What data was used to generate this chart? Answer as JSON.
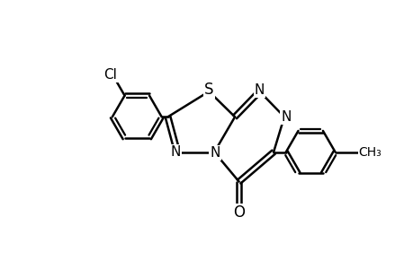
{
  "background_color": "#ffffff",
  "line_color": "#000000",
  "line_width": 1.8,
  "font_size": 11,
  "figsize": [
    4.6,
    3.0
  ],
  "dpi": 100,
  "xlim": [
    0,
    10
  ],
  "ylim": [
    0,
    6.5
  ]
}
